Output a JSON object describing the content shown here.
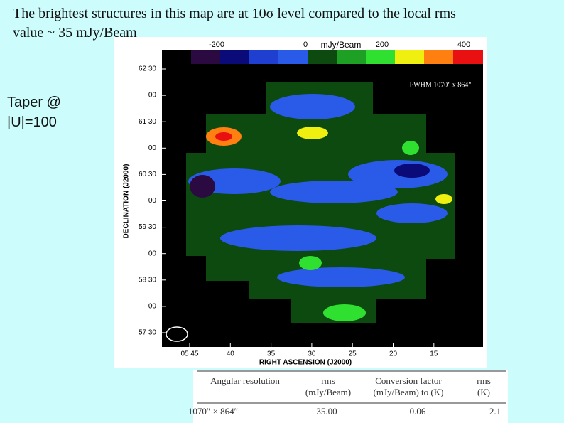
{
  "header": {
    "title_lines": [
      "The brightest structures in this map are at 10σ level compared to the local rms",
      "value ~ 35 mJy/Beam"
    ]
  },
  "side_note": {
    "lines": [
      "Taper @",
      "|U|=100"
    ]
  },
  "figure": {
    "colorbar": {
      "labels": [
        "-200",
        "0",
        "mJy/Beam",
        "200",
        "400"
      ]
    },
    "annotation": "FWHM 1070\" x 864\"",
    "y_axis": {
      "label": "DECLINATION (J2000)",
      "ticks": [
        "62 30",
        "00",
        "61 30",
        "00",
        "60 30",
        "00",
        "59 30",
        "00",
        "58 30",
        "00",
        "57 30"
      ]
    },
    "x_axis": {
      "label": "RIGHT ASCENSION (J2000)",
      "ticks": [
        "05 45",
        "40",
        "35",
        "30",
        "25",
        "20",
        "15"
      ]
    }
  },
  "table": {
    "headers": [
      [
        "Angular resolution"
      ],
      [
        "rms",
        "(mJy/Beam)"
      ],
      [
        "Conversion factor",
        "(mJy/Beam) to (K)"
      ],
      [
        "rms",
        "(K)"
      ]
    ],
    "rows": [
      [
        "1070″ × 864″",
        "35.00",
        "0.06",
        "2.1"
      ]
    ]
  }
}
